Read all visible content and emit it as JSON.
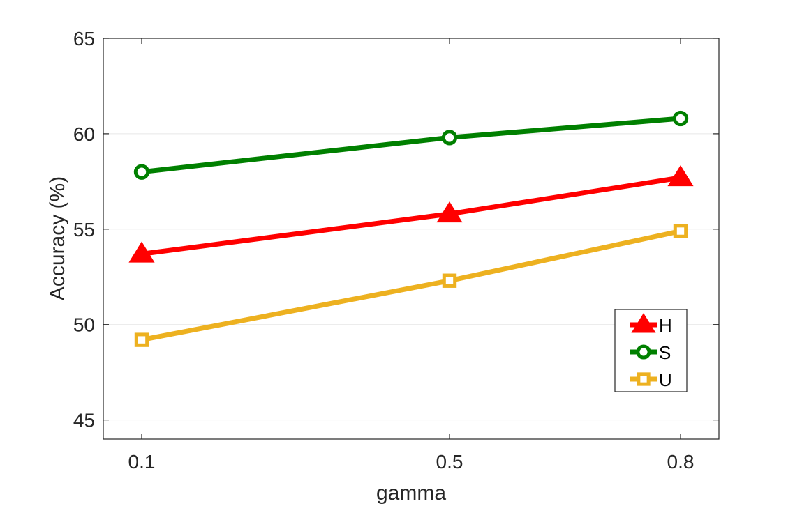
{
  "chart_data": {
    "type": "line",
    "title": "",
    "xlabel": "gamma",
    "ylabel": "Accuracy (%)",
    "x": [
      0.1,
      0.5,
      0.8
    ],
    "x_tick_labels": [
      "0.1",
      "0.5",
      "0.8"
    ],
    "ylim": [
      44,
      65
    ],
    "y_ticks": [
      45,
      50,
      55,
      60,
      65
    ],
    "grid": "horizontal",
    "legend_position": "bottom-right",
    "series": [
      {
        "name": "H",
        "values": [
          53.7,
          55.8,
          57.7
        ],
        "color": "#ff0000",
        "marker": "triangle"
      },
      {
        "name": "S",
        "values": [
          58.0,
          59.8,
          60.8
        ],
        "color": "#008000",
        "marker": "circle"
      },
      {
        "name": "U",
        "values": [
          49.2,
          52.3,
          54.9
        ],
        "color": "#edb120",
        "marker": "square"
      }
    ]
  }
}
